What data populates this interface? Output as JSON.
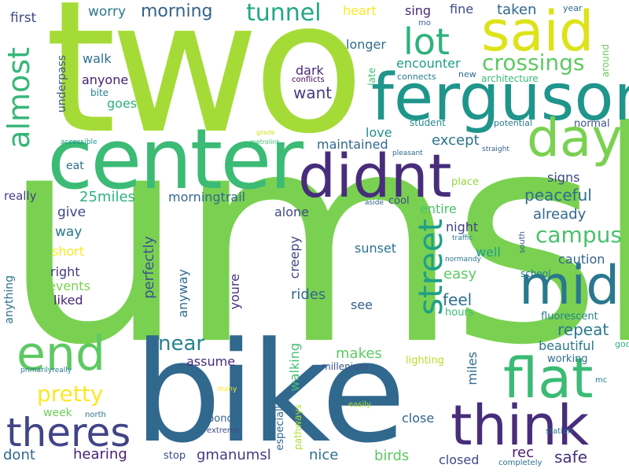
{
  "words": [
    {
      "text": "umsl",
      "color": "#7ad151"
    },
    {
      "text": "two",
      "color": "#a5db36"
    },
    {
      "text": "bike",
      "color": "#31688e"
    },
    {
      "text": "center",
      "color": "#3bbb75"
    },
    {
      "text": "ferguson",
      "color": "#1f958b"
    },
    {
      "text": "said",
      "color": "#dde318"
    },
    {
      "text": "didnt",
      "color": "#472d7b"
    },
    {
      "text": "day",
      "color": "#7ad151"
    },
    {
      "text": "think",
      "color": "#472d7b"
    },
    {
      "text": "mid",
      "color": "#2a788e"
    },
    {
      "text": "flat",
      "color": "#3bbb75"
    },
    {
      "text": "end",
      "color": "#5ec962"
    },
    {
      "text": "theres",
      "color": "#414487"
    },
    {
      "text": "almost",
      "color": "#35b779"
    },
    {
      "text": "lot",
      "color": "#2db27d"
    },
    {
      "text": "street",
      "color": "#1fa187"
    },
    {
      "text": "tunnel",
      "color": "#22a884"
    },
    {
      "text": "crossings",
      "color": "#5ec962"
    },
    {
      "text": "campus",
      "color": "#4ac16d"
    },
    {
      "text": "pretty",
      "color": "#fde725"
    },
    {
      "text": "near",
      "color": "#26828e"
    },
    {
      "text": "morning",
      "color": "#33638d"
    },
    {
      "text": "worry",
      "color": "#2a788e"
    },
    {
      "text": "first",
      "color": "#3e4a89"
    },
    {
      "text": "heart",
      "color": "#fde725"
    },
    {
      "text": "sing",
      "color": "#482878"
    },
    {
      "text": "fine",
      "color": "#3e4a89"
    },
    {
      "text": "taken",
      "color": "#31688e"
    },
    {
      "text": "year",
      "color": "#2e6e8e"
    },
    {
      "text": "mo",
      "color": "#355f8d"
    },
    {
      "text": "around",
      "color": "#6ccd5a"
    },
    {
      "text": "longer",
      "color": "#2e6e8e"
    },
    {
      "text": "walk",
      "color": "#2e6e8e"
    },
    {
      "text": "anyone",
      "color": "#482173"
    },
    {
      "text": "dark",
      "color": "#482878"
    },
    {
      "text": "encounter",
      "color": "#1e9c89"
    },
    {
      "text": "connects",
      "color": "#287c8e"
    },
    {
      "text": "new",
      "color": "#2d708e"
    },
    {
      "text": "architecture",
      "color": "#38b977"
    },
    {
      "text": "conflicts",
      "color": "#440154"
    },
    {
      "text": "late",
      "color": "#3dbc74"
    },
    {
      "text": "want",
      "color": "#443a83"
    },
    {
      "text": "underpass",
      "color": "#39568c"
    },
    {
      "text": "bite",
      "color": "#26828e"
    },
    {
      "text": "goes",
      "color": "#2db27d"
    },
    {
      "text": "student",
      "color": "#238a8d"
    },
    {
      "text": "potential",
      "color": "#287c8e"
    },
    {
      "text": "normal",
      "color": "#3b528b"
    },
    {
      "text": "love",
      "color": "#21918c"
    },
    {
      "text": "grade",
      "color": "#d0e11c"
    },
    {
      "text": "metrolink",
      "color": "#3dbc74"
    },
    {
      "text": "accessible",
      "color": "#1f958b"
    },
    {
      "text": "maintained",
      "color": "#31688e"
    },
    {
      "text": "except",
      "color": "#2c728e"
    },
    {
      "text": "straight",
      "color": "#355f8d"
    },
    {
      "text": "pleasant",
      "color": "#31688e"
    },
    {
      "text": "eat",
      "color": "#2c728e"
    },
    {
      "text": "signs",
      "color": "#3e4a89"
    },
    {
      "text": "place",
      "color": "#95d840"
    },
    {
      "text": "really",
      "color": "#433e85"
    },
    {
      "text": "25miles",
      "color": "#2db27d"
    },
    {
      "text": "morningtrail",
      "color": "#31688e"
    },
    {
      "text": "cool",
      "color": "#3e4a89"
    },
    {
      "text": "aside",
      "color": "#355f8d"
    },
    {
      "text": "peaceful",
      "color": "#2e6e8e"
    },
    {
      "text": "entire",
      "color": "#4ac16d"
    },
    {
      "text": "give",
      "color": "#414487"
    },
    {
      "text": "alone",
      "color": "#3e4a89"
    },
    {
      "text": "already",
      "color": "#31688e"
    },
    {
      "text": "way",
      "color": "#2a788e"
    },
    {
      "text": "night",
      "color": "#424086"
    },
    {
      "text": "traffic",
      "color": "#297b8e"
    },
    {
      "text": "south",
      "color": "#39568c"
    },
    {
      "text": "short",
      "color": "#fde725"
    },
    {
      "text": "perfectly",
      "color": "#3a548c"
    },
    {
      "text": "sunset",
      "color": "#2c728e"
    },
    {
      "text": "well",
      "color": "#1f9e89"
    },
    {
      "text": "normandy",
      "color": "#2c728e"
    },
    {
      "text": "caution",
      "color": "#33638d"
    },
    {
      "text": "right",
      "color": "#453781"
    },
    {
      "text": "easy",
      "color": "#5ec962"
    },
    {
      "text": "school",
      "color": "#297b8e"
    },
    {
      "text": "events",
      "color": "#7ad151"
    },
    {
      "text": "anyway",
      "color": "#2e6e8e"
    },
    {
      "text": "rides",
      "color": "#31688e"
    },
    {
      "text": "feel",
      "color": "#2e6e8e"
    },
    {
      "text": "liked",
      "color": "#482878"
    },
    {
      "text": "youre",
      "color": "#46327e"
    },
    {
      "text": "creepy",
      "color": "#414487"
    },
    {
      "text": "hours",
      "color": "#3dbc74"
    },
    {
      "text": "see",
      "color": "#355f8d"
    },
    {
      "text": "fluorescent",
      "color": "#26828e"
    },
    {
      "text": "anything",
      "color": "#2d708e"
    },
    {
      "text": "repeat",
      "color": "#2a788e"
    },
    {
      "text": "good",
      "color": "#2db27d"
    },
    {
      "text": "beautiful",
      "color": "#2a788e"
    },
    {
      "text": "assume",
      "color": "#472c7a"
    },
    {
      "text": "makes",
      "color": "#5ec962"
    },
    {
      "text": "miles",
      "color": "#2e6e8e"
    },
    {
      "text": "lighting",
      "color": "#b8de29"
    },
    {
      "text": "working",
      "color": "#2e6e8e"
    },
    {
      "text": "primarilyreally",
      "color": "#2a788e"
    },
    {
      "text": "millenium",
      "color": "#3b528b"
    },
    {
      "text": "walking",
      "color": "#44bf70"
    },
    {
      "text": "mc",
      "color": "#27808e"
    },
    {
      "text": "many",
      "color": "#fde725"
    },
    {
      "text": "week",
      "color": "#6ccd5a"
    },
    {
      "text": "north",
      "color": "#2c728e"
    },
    {
      "text": "ponds",
      "color": "#33638d"
    },
    {
      "text": "especially",
      "color": "#31688e"
    },
    {
      "text": "pathways",
      "color": "#addc30"
    },
    {
      "text": "easily",
      "color": "#addc30"
    },
    {
      "text": "close",
      "color": "#33638d"
    },
    {
      "text": "station",
      "color": "#2c728e"
    },
    {
      "text": "extreme",
      "color": "#3e4a89"
    },
    {
      "text": "dont",
      "color": "#31688e"
    },
    {
      "text": "hearing",
      "color": "#482173"
    },
    {
      "text": "gmanumsl",
      "color": "#443a83"
    },
    {
      "text": "stop",
      "color": "#3e4a89"
    },
    {
      "text": "nice",
      "color": "#2e6e8e"
    },
    {
      "text": "birds",
      "color": "#5ec962"
    },
    {
      "text": "closed",
      "color": "#3e4a89"
    },
    {
      "text": "rec",
      "color": "#481f71"
    },
    {
      "text": "safe",
      "color": "#46327e"
    },
    {
      "text": "completely",
      "color": "#2c728e"
    }
  ]
}
